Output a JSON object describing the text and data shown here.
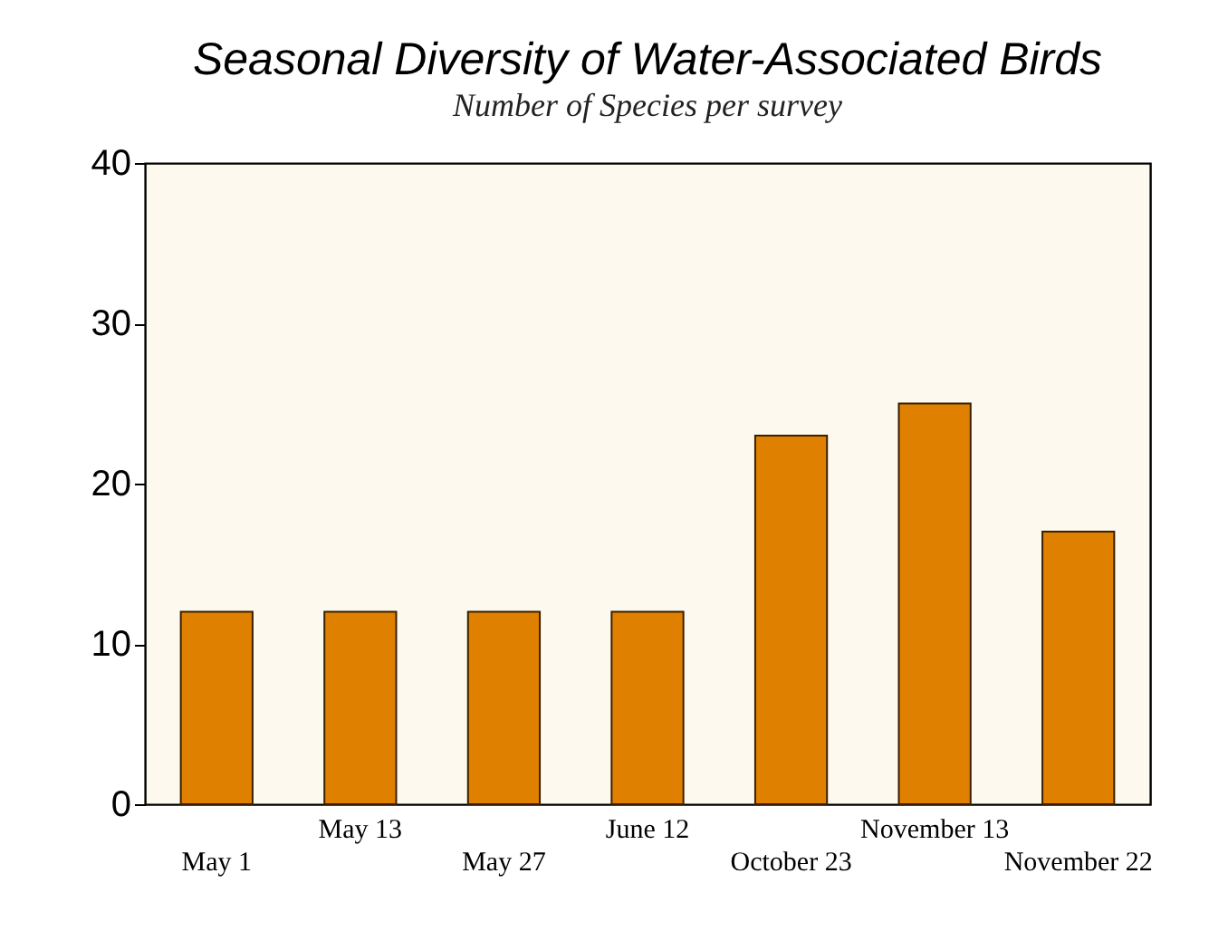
{
  "chart_data": {
    "type": "bar",
    "title": "Seasonal Diversity of Water-Associated Birds",
    "subtitle": "Number of Species per survey",
    "categories": [
      "May 1",
      "May 13",
      "May 27",
      "June 12",
      "October 23",
      "November 13",
      "November 22"
    ],
    "values": [
      12,
      12,
      12,
      12,
      23,
      25,
      17
    ],
    "color": "#e08000",
    "ylim": [
      0,
      40
    ],
    "yticks": [
      0,
      10,
      20,
      30,
      40
    ],
    "grid": false
  }
}
